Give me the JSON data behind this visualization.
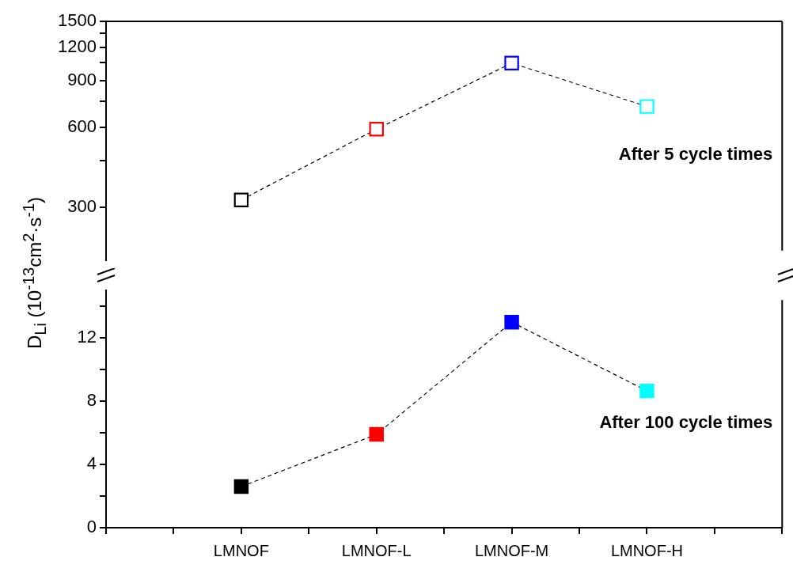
{
  "chart_data": [
    {
      "type": "line",
      "categories": [
        null,
        null,
        null,
        null
      ],
      "series": [
        {
          "color": "#000000",
          "colors": [
            "#000000",
            "#ff0000",
            "#0000ff",
            "#00ffff"
          ],
          "values": [
            320,
            590,
            1045,
            718
          ]
        }
      ],
      "log": "y",
      "ylim": [
        190,
        1500
      ],
      "yticks": [
        300,
        {
          "value": 450,
          "label": null
        },
        600,
        {
          "value": 750,
          "label": null
        },
        900,
        {
          "value": 1050,
          "label": null
        },
        1200,
        {
          "value": 1350,
          "label": null
        },
        1500
      ],
      "tick_labels": "y",
      "marker": "square",
      "line_style": "dashed",
      "grid": false,
      "legend": false,
      "annotations": [
        "After 5 cycle times"
      ]
    },
    {
      "type": "line",
      "categories": [
        "LMNOF",
        "LMNOF-L",
        "LMNOF-M",
        "LMNOF-H"
      ],
      "series": [
        {
          "color": "#000000",
          "colors": [
            "#000000",
            "#ff0000",
            "#0000ff",
            "#00ffff"
          ],
          "values": [
            2.6,
            5.9,
            13.0,
            8.65
          ]
        }
      ],
      "ylabel": "D$_{Li}$ (10$^{-13}$cm$^{2}$·s$^{-1}$)",
      "ylim": [
        0,
        15
      ],
      "yticks": [
        0,
        {
          "value": 2,
          "label": null
        },
        4,
        {
          "value": 6,
          "label": null
        },
        8,
        {
          "value": 10,
          "label": null
        },
        12,
        {
          "value": 14,
          "label": null
        }
      ],
      "marker": "square",
      "line_style": "dashed",
      "grid": false,
      "legend": false,
      "annotations": [
        "After 100 cycle times"
      ]
    }
  ]
}
